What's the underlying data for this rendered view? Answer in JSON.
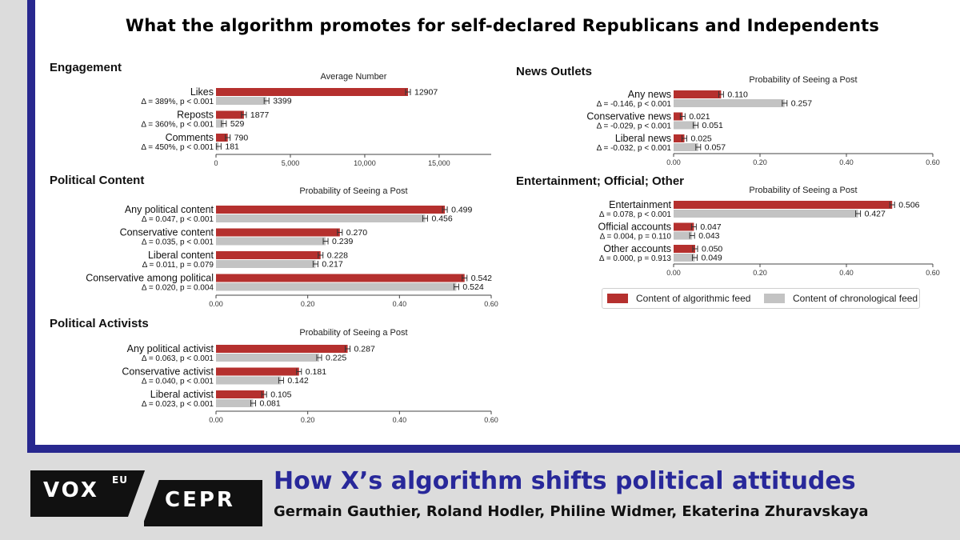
{
  "figure": {
    "title": "What the algorithm promotes for self-declared Republicans and Independents"
  },
  "colors": {
    "algorithmic": "#b5302e",
    "chronological": "#c3c3c3",
    "frame": "#28288f",
    "headline": "#28289a"
  },
  "legend": {
    "algorithmic": "Content of algorithmic feed",
    "chronological": "Content of chronological feed"
  },
  "chart_data": [
    {
      "type": "bar",
      "orientation": "horizontal",
      "title": "Engagement",
      "xlabel": "Average Number",
      "xlim": [
        0,
        18500
      ],
      "ticks": [
        0,
        5000,
        10000,
        15000
      ],
      "tick_labels": [
        "0",
        "5,000",
        "10,000",
        "15,000"
      ],
      "series": [
        {
          "name": "Content of algorithmic feed"
        },
        {
          "name": "Content of chronological feed"
        }
      ],
      "categories": [
        {
          "label": "Likes",
          "stat": "Δ = 389%, p < 0.001",
          "algorithmic": 12907,
          "chronological": 3399,
          "algorithmic_label": "12907",
          "chronological_label": "3399"
        },
        {
          "label": "Reposts",
          "stat": "Δ = 360%, p < 0.001",
          "algorithmic": 1877,
          "chronological": 529,
          "algorithmic_label": "1877",
          "chronological_label": "529"
        },
        {
          "label": "Comments",
          "stat": "Δ = 450%, p < 0.001",
          "algorithmic": 790,
          "chronological": 181,
          "algorithmic_label": "790",
          "chronological_label": "181"
        }
      ]
    },
    {
      "type": "bar",
      "orientation": "horizontal",
      "title": "Political Content",
      "xlabel": "Probability of Seeing a Post",
      "xlim": [
        0,
        0.6
      ],
      "ticks": [
        0,
        0.2,
        0.4,
        0.6
      ],
      "tick_labels": [
        "0.00",
        "0.20",
        "0.40",
        "0.60"
      ],
      "series": [
        {
          "name": "Content of algorithmic feed"
        },
        {
          "name": "Content of chronological feed"
        }
      ],
      "categories": [
        {
          "label": "Any political content",
          "stat": "Δ = 0.047, p < 0.001",
          "algorithmic": 0.499,
          "chronological": 0.456,
          "algorithmic_label": "0.499",
          "chronological_label": "0.456"
        },
        {
          "label": "Conservative content",
          "stat": "Δ = 0.035, p < 0.001",
          "algorithmic": 0.27,
          "chronological": 0.239,
          "algorithmic_label": "0.270",
          "chronological_label": "0.239"
        },
        {
          "label": "Liberal content",
          "stat": "Δ = 0.011, p = 0.079",
          "algorithmic": 0.228,
          "chronological": 0.217,
          "algorithmic_label": "0.228",
          "chronological_label": "0.217"
        },
        {
          "label": "Conservative among political",
          "stat": "Δ = 0.020, p = 0.004",
          "algorithmic": 0.542,
          "chronological": 0.524,
          "algorithmic_label": "0.542",
          "chronological_label": "0.524"
        }
      ]
    },
    {
      "type": "bar",
      "orientation": "horizontal",
      "title": "Political Activists",
      "xlabel": "Probability of Seeing a Post",
      "xlim": [
        0,
        0.6
      ],
      "ticks": [
        0,
        0.2,
        0.4,
        0.6
      ],
      "tick_labels": [
        "0.00",
        "0.20",
        "0.40",
        "0.60"
      ],
      "series": [
        {
          "name": "Content of algorithmic feed"
        },
        {
          "name": "Content of chronological feed"
        }
      ],
      "categories": [
        {
          "label": "Any political activist",
          "stat": "Δ = 0.063, p < 0.001",
          "algorithmic": 0.287,
          "chronological": 0.225,
          "algorithmic_label": "0.287",
          "chronological_label": "0.225"
        },
        {
          "label": "Conservative activist",
          "stat": "Δ = 0.040, p < 0.001",
          "algorithmic": 0.181,
          "chronological": 0.142,
          "algorithmic_label": "0.181",
          "chronological_label": "0.142"
        },
        {
          "label": "Liberal activist",
          "stat": "Δ = 0.023, p < 0.001",
          "algorithmic": 0.105,
          "chronological": 0.081,
          "algorithmic_label": "0.105",
          "chronological_label": "0.081"
        }
      ]
    },
    {
      "type": "bar",
      "orientation": "horizontal",
      "title": "News Outlets",
      "xlabel": "Probability of Seeing a Post",
      "xlim": [
        0,
        0.6
      ],
      "ticks": [
        0,
        0.2,
        0.4,
        0.6
      ],
      "tick_labels": [
        "0.00",
        "0.20",
        "0.40",
        "0.60"
      ],
      "series": [
        {
          "name": "Content of algorithmic feed"
        },
        {
          "name": "Content of chronological feed"
        }
      ],
      "categories": [
        {
          "label": "Any news",
          "stat": "Δ = -0.146, p < 0.001",
          "algorithmic": 0.11,
          "chronological": 0.257,
          "algorithmic_label": "0.110",
          "chronological_label": "0.257"
        },
        {
          "label": "Conservative news",
          "stat": "Δ = -0.029, p < 0.001",
          "algorithmic": 0.021,
          "chronological": 0.051,
          "algorithmic_label": "0.021",
          "chronological_label": "0.051"
        },
        {
          "label": "Liberal news",
          "stat": "Δ = -0.032, p < 0.001",
          "algorithmic": 0.025,
          "chronological": 0.057,
          "algorithmic_label": "0.025",
          "chronological_label": "0.057"
        }
      ]
    },
    {
      "type": "bar",
      "orientation": "horizontal",
      "title": "Entertainment; Official; Other",
      "xlabel": "Probability of Seeing a Post",
      "xlim": [
        0,
        0.6
      ],
      "ticks": [
        0,
        0.2,
        0.4,
        0.6
      ],
      "tick_labels": [
        "0.00",
        "0.20",
        "0.40",
        "0.60"
      ],
      "series": [
        {
          "name": "Content of algorithmic feed"
        },
        {
          "name": "Content of chronological feed"
        }
      ],
      "categories": [
        {
          "label": "Entertainment",
          "stat": "Δ = 0.078, p < 0.001",
          "algorithmic": 0.506,
          "chronological": 0.427,
          "algorithmic_label": "0.506",
          "chronological_label": "0.427"
        },
        {
          "label": "Official accounts",
          "stat": "Δ = 0.004, p = 0.110",
          "algorithmic": 0.047,
          "chronological": 0.043,
          "algorithmic_label": "0.047",
          "chronological_label": "0.043"
        },
        {
          "label": "Other accounts",
          "stat": "Δ = 0.000, p = 0.913",
          "algorithmic": 0.05,
          "chronological": 0.049,
          "algorithmic_label": "0.050",
          "chronological_label": "0.049"
        }
      ]
    }
  ],
  "footer": {
    "logo_vox": "VOX",
    "logo_eu": "EU",
    "logo_cepr": "CEPR",
    "headline": "How X’s algorithm shifts political attitudes",
    "authors": "Germain Gauthier, Roland Hodler, Philine Widmer, Ekaterina Zhuravskaya"
  }
}
